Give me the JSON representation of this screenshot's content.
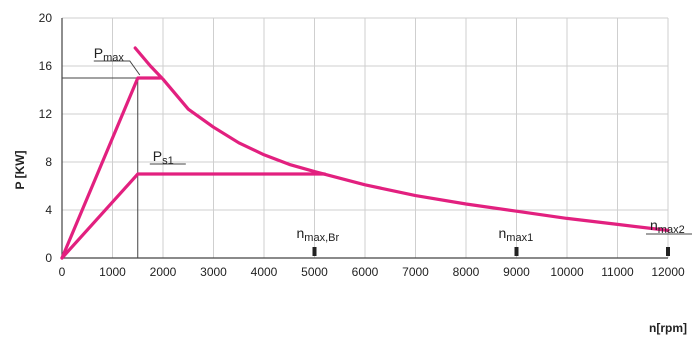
{
  "chart_data": {
    "type": "line",
    "title": "",
    "xlabel": "n[rpm]",
    "ylabel": "P [KW]",
    "xlim": [
      0,
      12000
    ],
    "ylim": [
      0,
      20
    ],
    "x_ticks": [
      0,
      1000,
      2000,
      3000,
      4000,
      5000,
      6000,
      7000,
      8000,
      9000,
      10000,
      11000,
      12000
    ],
    "y_ticks": [
      0,
      4,
      8,
      12,
      16,
      20
    ],
    "grid": true,
    "colors": {
      "curve": "#e2207f",
      "axis": "#444444",
      "grid": "#cfcfcf"
    },
    "series": [
      {
        "points": [
          [
            0,
            0
          ],
          [
            1500,
            15
          ],
          [
            1950,
            15
          ]
        ]
      },
      {
        "points": [
          [
            0,
            0
          ],
          [
            1500,
            7
          ],
          [
            5200,
            7
          ]
        ]
      },
      {
        "points": [
          [
            1450,
            17.5
          ],
          [
            1750,
            16
          ],
          [
            2000,
            14.9
          ],
          [
            2500,
            12.4
          ],
          [
            3000,
            10.9
          ],
          [
            3500,
            9.6
          ],
          [
            4000,
            8.6
          ],
          [
            4500,
            7.8
          ],
          [
            5000,
            7.2
          ],
          [
            6000,
            6.1
          ],
          [
            7000,
            5.2
          ],
          [
            8000,
            4.5
          ],
          [
            9000,
            3.9
          ],
          [
            10000,
            3.3
          ],
          [
            11000,
            2.8
          ],
          [
            12000,
            2.3
          ]
        ]
      }
    ],
    "annotations": [
      {
        "main": "P",
        "sub": "max",
        "x": 1500,
        "y": 15
      },
      {
        "main": "P",
        "sub": "s1",
        "x": 1500,
        "y": 7
      },
      {
        "main": "n",
        "sub": "max,Br",
        "x": 5000,
        "y": 0
      },
      {
        "main": "n",
        "sub": "max1",
        "x": 9000,
        "y": 0
      },
      {
        "main": "n",
        "sub": "max2",
        "x": 12000,
        "y": 0
      }
    ]
  }
}
